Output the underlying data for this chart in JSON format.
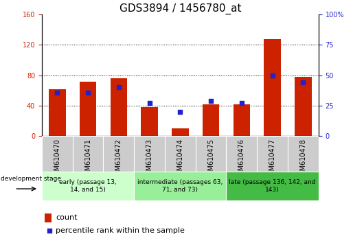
{
  "title": "GDS3894 / 1456780_at",
  "samples": [
    "GSM610470",
    "GSM610471",
    "GSM610472",
    "GSM610473",
    "GSM610474",
    "GSM610475",
    "GSM610476",
    "GSM610477",
    "GSM610478"
  ],
  "counts": [
    62,
    72,
    76,
    38,
    10,
    42,
    42,
    128,
    78
  ],
  "percentiles": [
    36,
    36,
    40,
    27,
    20,
    29,
    27,
    50,
    44
  ],
  "left_ylim": [
    0,
    160
  ],
  "right_ylim": [
    0,
    100
  ],
  "left_yticks": [
    0,
    40,
    80,
    120,
    160
  ],
  "right_yticks": [
    0,
    25,
    50,
    75,
    100
  ],
  "left_ytick_labels": [
    "0",
    "40",
    "80",
    "120",
    "160"
  ],
  "right_ytick_labels": [
    "0",
    "25",
    "50",
    "75",
    "100%"
  ],
  "bar_color": "#CC2200",
  "dot_color": "#2222CC",
  "groups": [
    {
      "label": "early (passage 13,\n14, and 15)",
      "start": 0,
      "end": 3,
      "color": "#CCFFCC"
    },
    {
      "label": "intermediate (passages 63,\n71, and 73)",
      "start": 3,
      "end": 6,
      "color": "#99EE99"
    },
    {
      "label": "late (passage 136, 142, and\n143)",
      "start": 6,
      "end": 9,
      "color": "#44BB44"
    }
  ],
  "legend_count_label": "count",
  "legend_percentile_label": "percentile rank within the sample",
  "dev_stage_label": "development stage",
  "bar_width": 0.55,
  "title_fontsize": 11,
  "tick_fontsize": 7,
  "group_fontsize": 6.5,
  "legend_fontsize": 8
}
